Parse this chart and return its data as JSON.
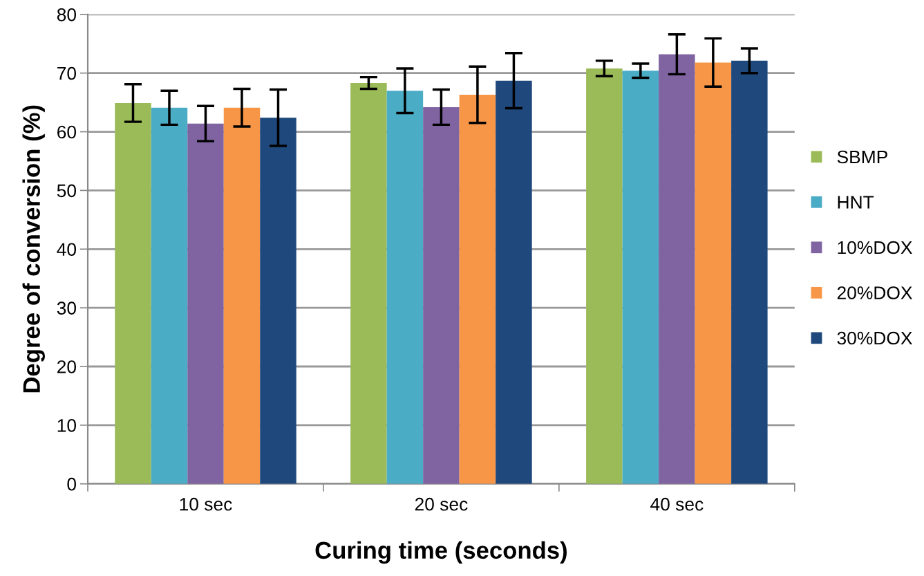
{
  "chart_data": {
    "type": "bar",
    "xlabel": "Curing time (seconds)",
    "ylabel": "Degree of conversion (%)",
    "categories": [
      "10 sec",
      "20 sec",
      "40 sec"
    ],
    "series": [
      {
        "name": "SBMP",
        "color": "#9bbb59",
        "values": [
          64.9,
          68.3,
          70.8
        ],
        "errors": [
          3.2,
          1.0,
          1.3
        ]
      },
      {
        "name": "HNT",
        "color": "#4bacc6",
        "values": [
          64.1,
          67.0,
          70.4
        ],
        "errors": [
          2.9,
          3.8,
          1.2
        ]
      },
      {
        "name": "10%DOX",
        "color": "#8064a2",
        "values": [
          61.4,
          64.2,
          73.2
        ],
        "errors": [
          3.0,
          3.0,
          3.4
        ]
      },
      {
        "name": "20%DOX",
        "color": "#f79646",
        "values": [
          64.1,
          66.3,
          71.8
        ],
        "errors": [
          3.2,
          4.8,
          4.1
        ]
      },
      {
        "name": "30%DOX",
        "color": "#1f497d",
        "values": [
          62.4,
          68.7,
          72.1
        ],
        "errors": [
          4.8,
          4.7,
          2.1
        ]
      }
    ],
    "ylim": [
      0,
      80
    ],
    "yticks": [
      0,
      10,
      20,
      30,
      40,
      50,
      60,
      70,
      80
    ],
    "grid": "y",
    "legend": "right"
  }
}
